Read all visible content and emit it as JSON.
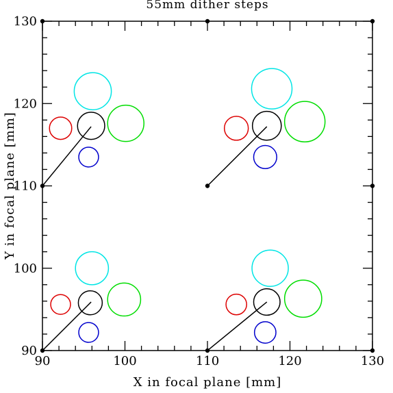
{
  "chart_data": {
    "type": "scatter",
    "title": "55mm dither steps",
    "xlabel": "X in focal plane [mm]",
    "ylabel": "Y in focal plane [mm]",
    "xlim": [
      90,
      130
    ],
    "ylim": [
      90,
      130
    ],
    "xticks": [
      90,
      100,
      110,
      120,
      130
    ],
    "yticks": [
      90,
      100,
      110,
      120,
      130
    ],
    "minor_tick_step": 2,
    "grid": false,
    "dots": [
      {
        "x": 90,
        "y": 130
      },
      {
        "x": 110,
        "y": 130
      },
      {
        "x": 130,
        "y": 130
      },
      {
        "x": 90,
        "y": 110
      },
      {
        "x": 110,
        "y": 110
      },
      {
        "x": 130,
        "y": 110
      },
      {
        "x": 90,
        "y": 90
      },
      {
        "x": 110,
        "y": 90
      },
      {
        "x": 130,
        "y": 90
      }
    ],
    "segments": [
      {
        "x1": 90,
        "y1": 110,
        "x2": 95.9,
        "y2": 117.2
      },
      {
        "x1": 110,
        "y1": 110,
        "x2": 117.2,
        "y2": 117.2
      },
      {
        "x1": 90,
        "y1": 90,
        "x2": 95.9,
        "y2": 95.9
      },
      {
        "x1": 110,
        "y1": 90,
        "x2": 117.2,
        "y2": 95.9
      }
    ],
    "circles": [
      {
        "x": 96.1,
        "y": 121.5,
        "r": 2.25,
        "color": "#00e5e5"
      },
      {
        "x": 92.2,
        "y": 117.0,
        "r": 1.35,
        "color": "#dd0000"
      },
      {
        "x": 95.9,
        "y": 117.3,
        "r": 1.65,
        "color": "#000000"
      },
      {
        "x": 100.1,
        "y": 117.6,
        "r": 2.2,
        "color": "#00dd00"
      },
      {
        "x": 95.6,
        "y": 113.5,
        "r": 1.2,
        "color": "#0000cc"
      },
      {
        "x": 117.8,
        "y": 121.8,
        "r": 2.45,
        "color": "#00e5e5"
      },
      {
        "x": 113.5,
        "y": 117.0,
        "r": 1.45,
        "color": "#dd0000"
      },
      {
        "x": 117.2,
        "y": 117.3,
        "r": 1.75,
        "color": "#000000"
      },
      {
        "x": 121.8,
        "y": 117.8,
        "r": 2.45,
        "color": "#00dd00"
      },
      {
        "x": 117.0,
        "y": 113.5,
        "r": 1.4,
        "color": "#0000cc"
      },
      {
        "x": 96.0,
        "y": 100.0,
        "r": 2.0,
        "color": "#00e5e5"
      },
      {
        "x": 92.2,
        "y": 95.6,
        "r": 1.2,
        "color": "#dd0000"
      },
      {
        "x": 95.8,
        "y": 95.8,
        "r": 1.45,
        "color": "#000000"
      },
      {
        "x": 99.9,
        "y": 96.2,
        "r": 2.0,
        "color": "#00dd00"
      },
      {
        "x": 95.6,
        "y": 92.2,
        "r": 1.2,
        "color": "#0000cc"
      },
      {
        "x": 117.6,
        "y": 100.0,
        "r": 2.2,
        "color": "#00e5e5"
      },
      {
        "x": 113.5,
        "y": 95.6,
        "r": 1.25,
        "color": "#dd0000"
      },
      {
        "x": 117.2,
        "y": 95.9,
        "r": 1.6,
        "color": "#000000"
      },
      {
        "x": 121.6,
        "y": 96.3,
        "r": 2.25,
        "color": "#00dd00"
      },
      {
        "x": 117.0,
        "y": 92.2,
        "r": 1.3,
        "color": "#0000cc"
      }
    ]
  }
}
